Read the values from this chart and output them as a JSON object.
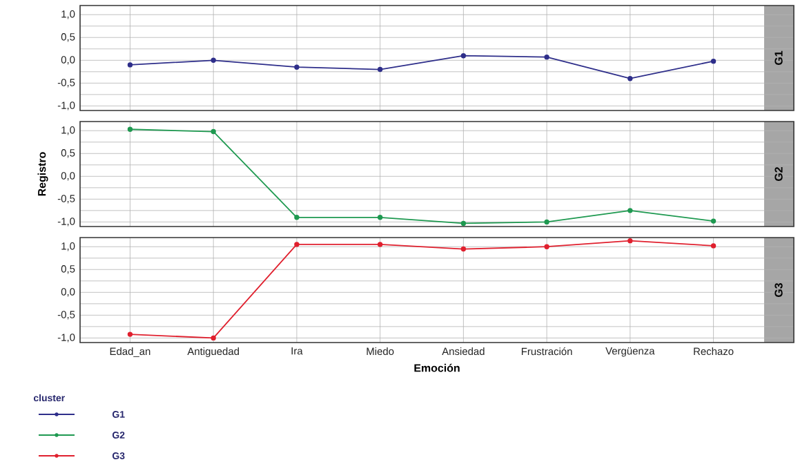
{
  "chart_data": [
    {
      "type": "line",
      "title": "G1",
      "categories": [
        null,
        null,
        null,
        null,
        null,
        null,
        null,
        null
      ],
      "ylim": [
        -1.1,
        1.2
      ],
      "yticks": [
        {
          "value": -1.0,
          "label": "-1,0"
        },
        {
          "value": -0.75,
          "label": null
        },
        {
          "value": -0.5,
          "label": "-0,5"
        },
        {
          "value": -0.25,
          "label": null
        },
        {
          "value": 0.0,
          "label": "0,0"
        },
        {
          "value": 0.25,
          "label": null
        },
        {
          "value": 0.5,
          "label": "0,5"
        },
        {
          "value": 0.75,
          "label": null
        },
        {
          "value": 1.0,
          "label": "1,0"
        }
      ],
      "grid": true,
      "marker": "circle",
      "tick_labels": "y",
      "legend": "bottom left",
      "legend_title": "cluster",
      "series": [
        {
          "name": "G1",
          "color": "#2e2e8a",
          "values": [
            -0.1,
            0.0,
            -0.15,
            -0.2,
            0.1,
            0.07,
            -0.4,
            -0.02
          ]
        }
      ]
    },
    {
      "type": "line",
      "title": "G2",
      "ylabel": "Registro",
      "categories": [
        null,
        null,
        null,
        null,
        null,
        null,
        null,
        null
      ],
      "ylim": [
        -1.1,
        1.2
      ],
      "yticks": [
        {
          "value": -1.0,
          "label": "-1,0"
        },
        {
          "value": -0.75,
          "label": null
        },
        {
          "value": -0.5,
          "label": "-0,5"
        },
        {
          "value": -0.25,
          "label": null
        },
        {
          "value": 0.0,
          "label": "0,0"
        },
        {
          "value": 0.25,
          "label": null
        },
        {
          "value": 0.5,
          "label": "0,5"
        },
        {
          "value": 0.75,
          "label": null
        },
        {
          "value": 1.0,
          "label": "1,0"
        }
      ],
      "grid": true,
      "marker": "circle",
      "tick_labels": "y",
      "legend": "bottom left",
      "series": [
        {
          "name": "G2",
          "color": "#1e9950",
          "values": [
            1.03,
            0.98,
            -0.9,
            -0.9,
            -1.03,
            -1.0,
            -0.75,
            -0.98
          ]
        }
      ]
    },
    {
      "type": "line",
      "title": "G3",
      "xlabel": "Emoción",
      "categories": [
        "Edad_an",
        "Antiguedad",
        "Ira",
        "Miedo",
        "Ansiedad",
        "Frustración",
        "Vergüenza",
        "Rechazo"
      ],
      "ylim": [
        -1.1,
        1.2
      ],
      "yticks": [
        {
          "value": -1.0,
          "label": "-1,0"
        },
        {
          "value": -0.75,
          "label": null
        },
        {
          "value": -0.5,
          "label": "-0,5"
        },
        {
          "value": -0.25,
          "label": null
        },
        {
          "value": 0.0,
          "label": "0,0"
        },
        {
          "value": 0.25,
          "label": null
        },
        {
          "value": 0.5,
          "label": "0,5"
        },
        {
          "value": 0.75,
          "label": null
        },
        {
          "value": 1.0,
          "label": "1,0"
        }
      ],
      "grid": true,
      "marker": "circle",
      "legend": "bottom left",
      "series": [
        {
          "name": "G3",
          "color": "#e0202e",
          "values": [
            -0.92,
            -1.0,
            1.05,
            1.05,
            0.95,
            1.0,
            1.13,
            1.02
          ]
        }
      ]
    }
  ]
}
